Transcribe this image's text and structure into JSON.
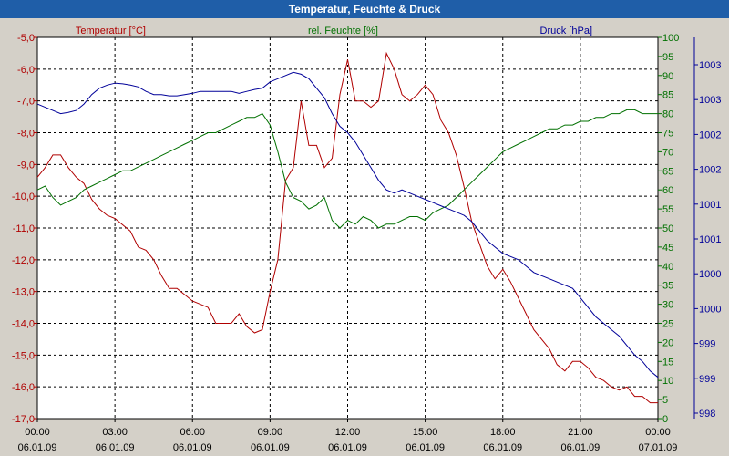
{
  "window": {
    "title": "Temperatur, Feuchte & Druck"
  },
  "chart_data": {
    "type": "line",
    "title": "Temperatur, Feuchte & Druck",
    "colors": {
      "temperature": "#b00000",
      "humidity": "#007000",
      "pressure": "#000099",
      "axis": "#000000",
      "background": "#ffffff",
      "frame": "#d4d0c8",
      "titlebar": "#1f5ea8"
    },
    "axes": {
      "temperature": {
        "label": "Temperatur [°C]",
        "ylim": [
          -17,
          -5
        ],
        "ticks": [
          "-5,0",
          "-6,0",
          "-7,0",
          "-8,0",
          "-9,0",
          "-10,0",
          "-11,0",
          "-12,0",
          "-13,0",
          "-14,0",
          "-15,0",
          "-16,0",
          "-17,0"
        ]
      },
      "humidity": {
        "label": "rel. Feuchte [%]",
        "ylim": [
          0,
          100
        ],
        "ticks": [
          "100",
          "95",
          "90",
          "85",
          "80",
          "75",
          "70",
          "65",
          "60",
          "55",
          "50",
          "45",
          "40",
          "35",
          "30",
          "25",
          "20",
          "15",
          "10",
          "5",
          "0"
        ]
      },
      "pressure": {
        "label": "Druck [hPa]",
        "ylim": [
          997.8,
          1003.8
        ],
        "ticks": [
          "1003",
          "1003",
          "1002",
          "1002",
          "1001",
          "1001",
          "1000",
          "1000",
          "999",
          "999",
          "998"
        ]
      }
    },
    "x_ticks": [
      {
        "time": "00:00",
        "date": "06.01.09"
      },
      {
        "time": "03:00",
        "date": "06.01.09"
      },
      {
        "time": "06:00",
        "date": "06.01.09"
      },
      {
        "time": "09:00",
        "date": "06.01.09"
      },
      {
        "time": "12:00",
        "date": "06.01.09"
      },
      {
        "time": "15:00",
        "date": "06.01.09"
      },
      {
        "time": "18:00",
        "date": "06.01.09"
      },
      {
        "time": "21:00",
        "date": "06.01.09"
      },
      {
        "time": "00:00",
        "date": "07.01.09"
      }
    ],
    "xlim_hours": [
      0,
      24
    ],
    "series": [
      {
        "name": "Temperatur [°C]",
        "key": "temperature",
        "x": [
          0,
          0.3,
          0.6,
          0.9,
          1.2,
          1.5,
          1.8,
          2.1,
          2.4,
          2.7,
          3.0,
          3.3,
          3.6,
          3.9,
          4.2,
          4.5,
          4.8,
          5.1,
          5.4,
          5.7,
          6.0,
          6.3,
          6.6,
          6.9,
          7.2,
          7.5,
          7.8,
          8.1,
          8.4,
          8.7,
          9.0,
          9.3,
          9.6,
          9.9,
          10.2,
          10.5,
          10.8,
          11.1,
          11.4,
          11.7,
          12.0,
          12.3,
          12.6,
          12.9,
          13.2,
          13.5,
          13.8,
          14.1,
          14.4,
          14.7,
          15.0,
          15.3,
          15.6,
          15.9,
          16.2,
          16.5,
          16.8,
          17.1,
          17.4,
          17.7,
          18.0,
          18.3,
          18.6,
          18.9,
          19.2,
          19.5,
          19.8,
          20.1,
          20.4,
          20.7,
          21.0,
          21.3,
          21.6,
          21.9,
          22.2,
          22.5,
          22.8,
          23.1,
          23.4,
          23.7,
          24.0
        ],
        "values": [
          -9.4,
          -9.1,
          -8.7,
          -8.7,
          -9.1,
          -9.4,
          -9.6,
          -10.1,
          -10.4,
          -10.6,
          -10.7,
          -10.9,
          -11.1,
          -11.6,
          -11.7,
          -12.0,
          -12.5,
          -12.9,
          -12.9,
          -13.1,
          -13.3,
          -13.4,
          -13.5,
          -14.0,
          -14.0,
          -14.0,
          -13.7,
          -14.1,
          -14.3,
          -14.2,
          -13.0,
          -12.0,
          -9.5,
          -9.1,
          -7.0,
          -8.4,
          -8.4,
          -9.1,
          -8.8,
          -6.8,
          -5.7,
          -7.0,
          -7.0,
          -7.2,
          -7.0,
          -5.5,
          -6.0,
          -6.8,
          -7.0,
          -6.8,
          -6.5,
          -6.8,
          -7.6,
          -8.0,
          -8.7,
          -9.7,
          -10.8,
          -11.5,
          -12.2,
          -12.6,
          -12.3,
          -12.7,
          -13.2,
          -13.7,
          -14.2,
          -14.5,
          -14.8,
          -15.3,
          -15.5,
          -15.2,
          -15.2,
          -15.4,
          -15.7,
          -15.8,
          -16.0,
          -16.1,
          -16.0,
          -16.3,
          -16.3,
          -16.5,
          -16.5
        ]
      },
      {
        "name": "rel. Feuchte [%]",
        "key": "humidity",
        "x": [
          0,
          0.3,
          0.6,
          0.9,
          1.2,
          1.5,
          1.8,
          2.1,
          2.4,
          2.7,
          3.0,
          3.3,
          3.6,
          3.9,
          4.2,
          4.5,
          4.8,
          5.1,
          5.4,
          5.7,
          6.0,
          6.3,
          6.6,
          6.9,
          7.2,
          7.5,
          7.8,
          8.1,
          8.4,
          8.7,
          9.0,
          9.3,
          9.6,
          9.9,
          10.2,
          10.5,
          10.8,
          11.1,
          11.4,
          11.7,
          12.0,
          12.3,
          12.6,
          12.9,
          13.2,
          13.5,
          13.8,
          14.1,
          14.4,
          14.7,
          15.0,
          15.3,
          15.6,
          15.9,
          16.2,
          16.5,
          16.8,
          17.1,
          17.4,
          17.7,
          18.0,
          18.3,
          18.6,
          18.9,
          19.2,
          19.5,
          19.8,
          20.1,
          20.4,
          20.7,
          21.0,
          21.3,
          21.6,
          21.9,
          22.2,
          22.5,
          22.8,
          23.1,
          23.4,
          23.7,
          24.0
        ],
        "values": [
          60,
          61,
          58,
          56,
          57,
          58,
          60,
          61,
          62,
          63,
          64,
          65,
          65,
          66,
          67,
          68,
          69,
          70,
          71,
          72,
          73,
          74,
          75,
          75,
          76,
          77,
          78,
          79,
          79,
          80,
          77,
          70,
          62,
          58,
          57,
          55,
          56,
          58,
          52,
          50,
          52,
          51,
          53,
          52,
          50,
          51,
          51,
          52,
          53,
          53,
          52,
          54,
          55,
          56,
          58,
          60,
          62,
          64,
          66,
          68,
          70,
          71,
          72,
          73,
          74,
          75,
          76,
          76,
          77,
          77,
          78,
          78,
          79,
          79,
          80,
          80,
          81,
          81,
          80,
          80,
          80
        ],
        "note": "first point near 00:00"
      },
      {
        "name": "Druck [hPa]",
        "key": "pressure",
        "x": [
          0,
          0.3,
          0.6,
          0.9,
          1.2,
          1.5,
          1.8,
          2.1,
          2.4,
          2.7,
          3.0,
          3.3,
          3.6,
          3.9,
          4.2,
          4.5,
          4.8,
          5.1,
          5.4,
          5.7,
          6.0,
          6.3,
          6.6,
          6.9,
          7.2,
          7.5,
          7.8,
          8.1,
          8.4,
          8.7,
          9.0,
          9.3,
          9.6,
          9.9,
          10.2,
          10.5,
          10.8,
          11.1,
          11.4,
          11.7,
          12.0,
          12.3,
          12.6,
          12.9,
          13.2,
          13.5,
          13.8,
          14.1,
          14.4,
          14.7,
          15.0,
          15.3,
          15.6,
          15.9,
          16.2,
          16.5,
          16.8,
          17.1,
          17.4,
          17.7,
          18.0,
          18.3,
          18.6,
          18.9,
          19.2,
          19.5,
          19.8,
          20.1,
          20.4,
          20.7,
          21.0,
          21.3,
          21.6,
          21.9,
          22.2,
          22.5,
          22.8,
          23.1,
          23.4,
          23.7,
          24.0
        ],
        "values": [
          1002.75,
          1002.7,
          1002.65,
          1002.6,
          1002.62,
          1002.65,
          1002.75,
          1002.9,
          1003.0,
          1003.05,
          1003.08,
          1003.07,
          1003.05,
          1003.02,
          1002.95,
          1002.9,
          1002.9,
          1002.88,
          1002.88,
          1002.9,
          1002.92,
          1002.95,
          1002.95,
          1002.95,
          1002.95,
          1002.95,
          1002.92,
          1002.95,
          1002.98,
          1003.0,
          1003.1,
          1003.15,
          1003.2,
          1003.25,
          1003.22,
          1003.15,
          1003.0,
          1002.85,
          1002.6,
          1002.4,
          1002.3,
          1002.15,
          1001.95,
          1001.75,
          1001.55,
          1001.4,
          1001.35,
          1001.4,
          1001.35,
          1001.3,
          1001.25,
          1001.2,
          1001.15,
          1001.1,
          1001.05,
          1001.0,
          1000.9,
          1000.75,
          1000.6,
          1000.5,
          1000.4,
          1000.35,
          1000.3,
          1000.2,
          1000.1,
          1000.05,
          1000.0,
          999.95,
          999.9,
          999.85,
          999.7,
          999.55,
          999.4,
          999.3,
          999.2,
          999.1,
          998.95,
          998.8,
          998.7,
          998.55,
          998.45
        ]
      }
    ]
  }
}
